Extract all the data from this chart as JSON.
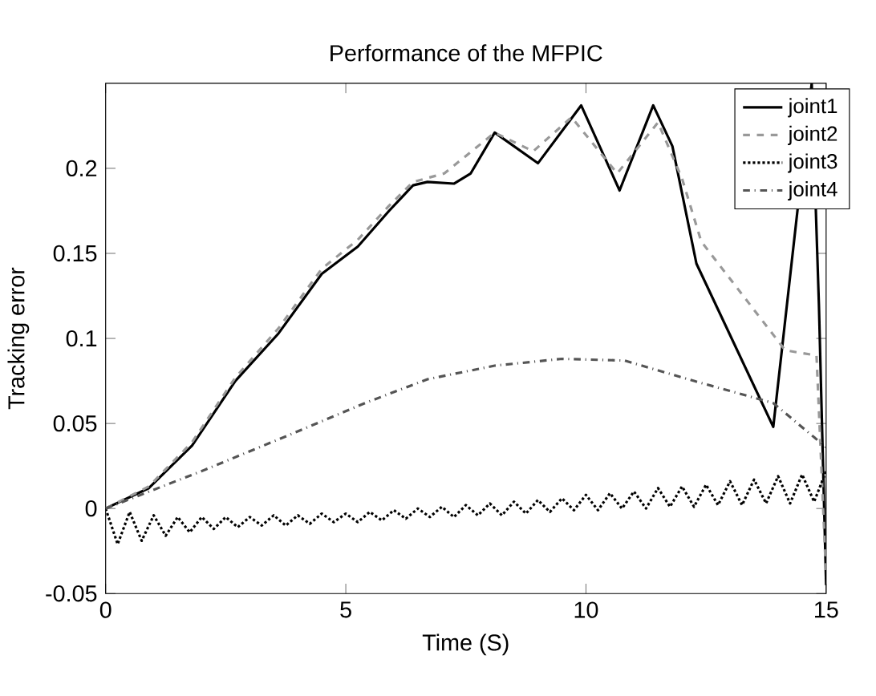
{
  "chart_data": {
    "type": "line",
    "title": "Performance of the MFPIC",
    "xlabel": "Time (S)",
    "ylabel": "Tracking error",
    "xlim": [
      0,
      15
    ],
    "ylim": [
      -0.05,
      0.25
    ],
    "xticks": [
      0,
      5,
      10,
      15
    ],
    "yticks": [
      -0.05,
      0,
      0.05,
      0.1,
      0.15,
      0.2
    ],
    "grid": false,
    "legend": "top right",
    "marker": "none",
    "series": [
      {
        "name": "joint1",
        "color": "#000000",
        "line_style": "solid",
        "x": [
          0,
          0.9,
          1.8,
          2.7,
          3.6,
          4.5,
          5.25,
          5.9,
          6.4,
          6.7,
          7.25,
          7.6,
          8.1,
          9.0,
          9.9,
          10.7,
          11.4,
          11.8,
          12.3,
          12.9,
          13.4,
          13.9,
          14.3,
          14.7,
          14.85,
          15
        ],
        "values": [
          0,
          0.012,
          0.037,
          0.075,
          0.103,
          0.138,
          0.154,
          0.175,
          0.19,
          0.192,
          0.191,
          0.197,
          0.221,
          0.203,
          0.237,
          0.187,
          0.237,
          0.213,
          0.144,
          null,
          null,
          0.048,
          null,
          0.25,
          0.12,
          -0.045
        ]
      },
      {
        "name": "joint2",
        "color": "#999999",
        "line_style": "dashed",
        "x": [
          0,
          0.9,
          1.8,
          2.7,
          3.6,
          4.5,
          5.25,
          5.9,
          6.4,
          7.05,
          8.1,
          8.9,
          9.7,
          10.65,
          11.5,
          12.0,
          12.4,
          13.2,
          14.15,
          14.5,
          14.8,
          15
        ],
        "values": [
          0,
          0.013,
          0.039,
          0.077,
          0.106,
          0.141,
          0.158,
          0.178,
          0.192,
          0.197,
          0.221,
          0.21,
          0.23,
          0.197,
          0.227,
          0.194,
          0.157,
          null,
          0.093,
          null,
          0.09,
          -0.04
        ]
      },
      {
        "name": "joint3",
        "color": "#000000",
        "line_style": "dotted",
        "x": [
          0,
          0.25,
          0.5,
          0.75,
          1,
          1.25,
          1.5,
          1.75,
          2,
          2.25,
          2.5,
          2.75,
          3,
          3.25,
          3.5,
          3.75,
          4,
          4.25,
          4.5,
          4.75,
          5,
          5.25,
          5.5,
          5.75,
          6,
          6.25,
          6.5,
          6.75,
          7,
          7.25,
          7.5,
          7.75,
          8,
          8.25,
          8.5,
          8.75,
          9,
          9.25,
          9.5,
          9.75,
          10,
          10.25,
          10.5,
          10.75,
          11,
          11.25,
          11.5,
          11.75,
          12,
          12.25,
          12.5,
          12.75,
          13,
          13.25,
          13.5,
          13.75,
          14,
          14.25,
          14.5,
          14.75,
          15
        ],
        "values": [
          0,
          -0.021,
          -0.002,
          -0.019,
          -0.004,
          -0.016,
          -0.005,
          -0.014,
          -0.005,
          -0.012,
          -0.005,
          -0.011,
          -0.005,
          -0.01,
          -0.004,
          -0.01,
          -0.004,
          -0.009,
          -0.003,
          -0.008,
          -0.003,
          -0.008,
          -0.002,
          -0.007,
          -0.001,
          -0.006,
          0,
          -0.005,
          0.001,
          -0.005,
          0.002,
          -0.004,
          0.003,
          -0.004,
          0.004,
          -0.003,
          0.005,
          -0.002,
          0.006,
          -0.001,
          0.008,
          -0.001,
          0.009,
          0,
          0.01,
          0,
          0.012,
          0.001,
          0.013,
          0.001,
          0.014,
          0.002,
          0.016,
          0.002,
          0.017,
          0.003,
          0.019,
          0.003,
          0.02,
          0.004,
          0.022
        ]
      },
      {
        "name": "joint4",
        "color": "#555555",
        "line_style": "dashdot",
        "x": [
          0,
          2.0,
          3.8,
          5.4,
          6.7,
          8.1,
          9.5,
          10.8,
          12.25,
          13.9,
          15
        ],
        "values": [
          0,
          0.022,
          0.043,
          0.062,
          0.076,
          0.084,
          0.088,
          0.087,
          0.075,
          0.062,
          0.036
        ]
      }
    ]
  }
}
